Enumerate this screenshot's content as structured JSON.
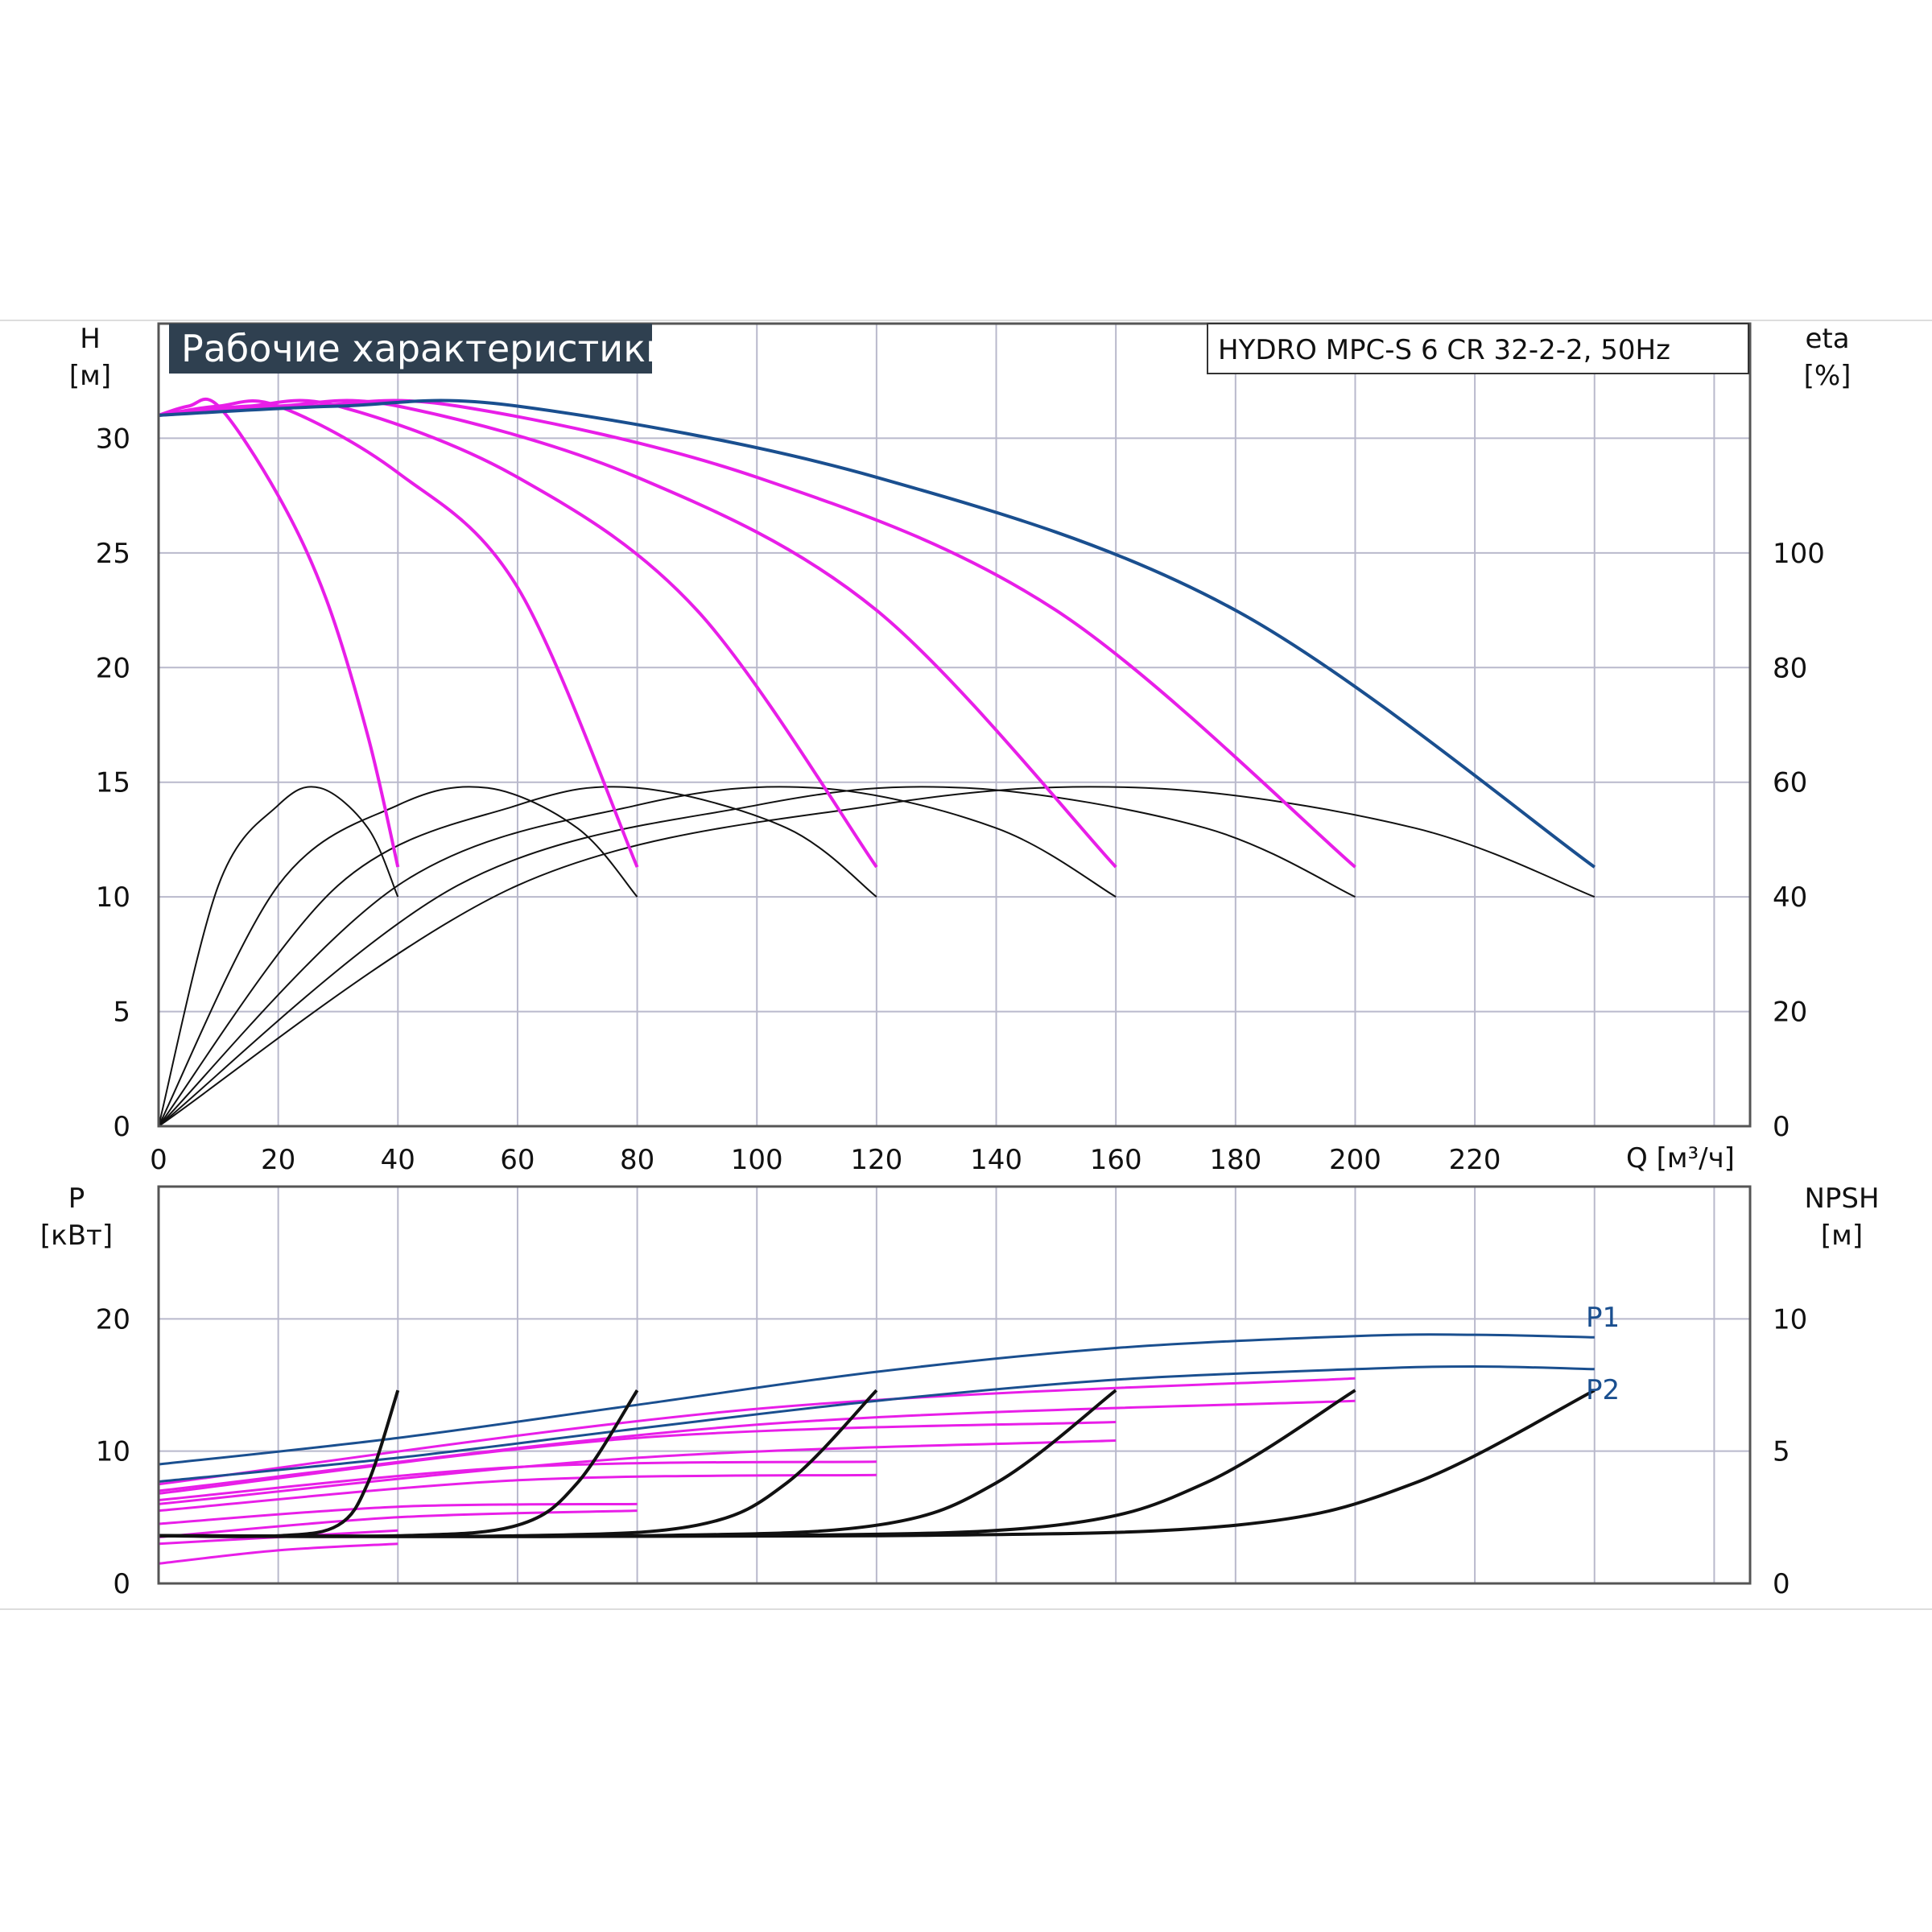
{
  "chart_data": [
    {
      "type": "line",
      "title": "Рабочие характеристики",
      "model": "HYDRO MPC-S 6 CR 32-2-2, 50Hz",
      "xlabel": "Q [м³/ч]",
      "ylabel_left": "H",
      "ylabel_left_unit": "[м]",
      "ylabel_right": "eta",
      "ylabel_right_unit": "[%]",
      "xlim": [
        0,
        266
      ],
      "ylim": [
        0,
        35
      ],
      "y2lim": [
        0,
        140
      ],
      "x_ticks": [
        "0",
        "20",
        "40",
        "60",
        "80",
        "100",
        "120",
        "140",
        "160",
        "180",
        "200",
        "220"
      ],
      "y_ticks": [
        "0",
        "5",
        "10",
        "15",
        "20",
        "25",
        "30"
      ],
      "y2_ticks": [
        "0",
        "20",
        "40",
        "60",
        "80",
        "100"
      ],
      "grid": true,
      "head_series": [
        {
          "pumps": 1,
          "color": "#e81ee8",
          "x": [
            0,
            5,
            10,
            20,
            28,
            35,
            40
          ],
          "y": [
            31.0,
            31.4,
            31.4,
            27.5,
            23.0,
            17.0,
            11.3
          ]
        },
        {
          "pumps": 2,
          "color": "#e81ee8",
          "x": [
            0,
            10,
            20,
            40,
            60,
            80
          ],
          "y": [
            31.0,
            31.4,
            31.4,
            28.5,
            23.5,
            11.3
          ]
        },
        {
          "pumps": 3,
          "color": "#e81ee8",
          "x": [
            0,
            15,
            30,
            60,
            90,
            120
          ],
          "y": [
            31.0,
            31.4,
            31.4,
            28.3,
            22.5,
            11.3
          ]
        },
        {
          "pumps": 4,
          "color": "#e81ee8",
          "x": [
            0,
            20,
            40,
            80,
            120,
            160
          ],
          "y": [
            31.0,
            31.4,
            31.4,
            28.3,
            22.5,
            11.3
          ]
        },
        {
          "pumps": 5,
          "color": "#e81ee8",
          "x": [
            0,
            25,
            50,
            100,
            150,
            200
          ],
          "y": [
            31.0,
            31.4,
            31.4,
            28.3,
            22.5,
            11.3
          ]
        },
        {
          "pumps": 6,
          "color": "#1a4f8f",
          "x": [
            0,
            30,
            60,
            120,
            180,
            240
          ],
          "y": [
            31.0,
            31.4,
            31.4,
            28.3,
            22.5,
            11.3
          ]
        }
      ],
      "efficiency_series": [
        {
          "pumps": 1,
          "x": [
            0,
            10,
            20,
            27,
            35,
            40
          ],
          "y": [
            0,
            42,
            56,
            59,
            52,
            40
          ]
        },
        {
          "pumps": 2,
          "x": [
            0,
            20,
            40,
            55,
            70,
            80
          ],
          "y": [
            0,
            42,
            56,
            59,
            52,
            40
          ]
        },
        {
          "pumps": 3,
          "x": [
            0,
            30,
            60,
            80,
            105,
            120
          ],
          "y": [
            0,
            42,
            56,
            59,
            52,
            40
          ]
        },
        {
          "pumps": 4,
          "x": [
            0,
            40,
            80,
            110,
            140,
            160
          ],
          "y": [
            0,
            42,
            56,
            59,
            52,
            40
          ]
        },
        {
          "pumps": 5,
          "x": [
            0,
            50,
            100,
            135,
            175,
            200
          ],
          "y": [
            0,
            42,
            56,
            59,
            52,
            40
          ]
        },
        {
          "pumps": 6,
          "x": [
            0,
            60,
            120,
            165,
            210,
            240
          ],
          "y": [
            0,
            42,
            56,
            59,
            52,
            40
          ]
        }
      ]
    },
    {
      "type": "line",
      "ylabel_left": "P",
      "ylabel_left_unit": "[кВт]",
      "ylabel_right": "NPSH",
      "ylabel_right_unit": "[м]",
      "xlim": [
        0,
        266
      ],
      "ylim": [
        0,
        30
      ],
      "y2lim": [
        0,
        15
      ],
      "y_ticks": [
        "0",
        "10",
        "20"
      ],
      "y2_ticks": [
        "0",
        "5",
        "10"
      ],
      "grid": true,
      "power_series": [
        {
          "name": "P1",
          "color": "#1a4f8f",
          "x": [
            0,
            40,
            80,
            120,
            160,
            200,
            220,
            240
          ],
          "y": [
            9.0,
            11.0,
            13.5,
            16.0,
            17.8,
            18.7,
            18.8,
            18.6
          ]
        },
        {
          "name": "P2",
          "color": "#1a4f8f",
          "x": [
            0,
            40,
            80,
            120,
            160,
            200,
            220,
            240
          ],
          "y": [
            7.7,
            9.5,
            11.7,
            13.8,
            15.4,
            16.2,
            16.4,
            16.2
          ]
        }
      ],
      "partial_power_series": [
        {
          "color": "#e81ee8",
          "x": [
            0,
            20,
            40
          ],
          "y": [
            1.5,
            2.5,
            3.0
          ]
        },
        {
          "color": "#e81ee8",
          "x": [
            0,
            20,
            40
          ],
          "y": [
            3.0,
            3.5,
            4.0
          ]
        },
        {
          "color": "#e81ee8",
          "x": [
            0,
            40,
            80
          ],
          "y": [
            3.5,
            5.0,
            5.5
          ]
        },
        {
          "color": "#e81ee8",
          "x": [
            0,
            40,
            80
          ],
          "y": [
            4.5,
            5.8,
            6.0
          ]
        },
        {
          "color": "#e81ee8",
          "x": [
            0,
            60,
            120
          ],
          "y": [
            5.5,
            7.8,
            8.2
          ]
        },
        {
          "color": "#e81ee8",
          "x": [
            0,
            60,
            120
          ],
          "y": [
            6.3,
            8.8,
            9.2
          ]
        },
        {
          "color": "#e81ee8",
          "x": [
            0,
            80,
            160
          ],
          "y": [
            6.0,
            9.5,
            10.8
          ]
        },
        {
          "color": "#e81ee8",
          "x": [
            0,
            80,
            160
          ],
          "y": [
            6.8,
            11.0,
            12.2
          ]
        },
        {
          "color": "#e81ee8",
          "x": [
            0,
            100,
            200
          ],
          "y": [
            7.0,
            12.0,
            13.8
          ]
        },
        {
          "color": "#e81ee8",
          "x": [
            0,
            100,
            200
          ],
          "y": [
            7.5,
            13.2,
            15.5
          ]
        }
      ],
      "npsh_series": [
        {
          "pumps": 1,
          "x": [
            0,
            20,
            30,
            35,
            40
          ],
          "y": [
            1.8,
            1.8,
            2.2,
            3.8,
            7.3
          ]
        },
        {
          "pumps": 2,
          "x": [
            0,
            40,
            60,
            70,
            80
          ],
          "y": [
            1.8,
            1.8,
            2.2,
            3.8,
            7.3
          ]
        },
        {
          "pumps": 3,
          "x": [
            0,
            60,
            90,
            105,
            120
          ],
          "y": [
            1.8,
            1.8,
            2.2,
            3.8,
            7.3
          ]
        },
        {
          "pumps": 4,
          "x": [
            0,
            80,
            120,
            140,
            160
          ],
          "y": [
            1.8,
            1.8,
            2.2,
            3.8,
            7.3
          ]
        },
        {
          "pumps": 5,
          "x": [
            0,
            100,
            150,
            175,
            200
          ],
          "y": [
            1.8,
            1.8,
            2.2,
            3.8,
            7.3
          ]
        },
        {
          "pumps": 6,
          "x": [
            0,
            120,
            180,
            210,
            240
          ],
          "y": [
            1.8,
            1.8,
            2.2,
            3.8,
            7.3
          ]
        }
      ]
    }
  ]
}
